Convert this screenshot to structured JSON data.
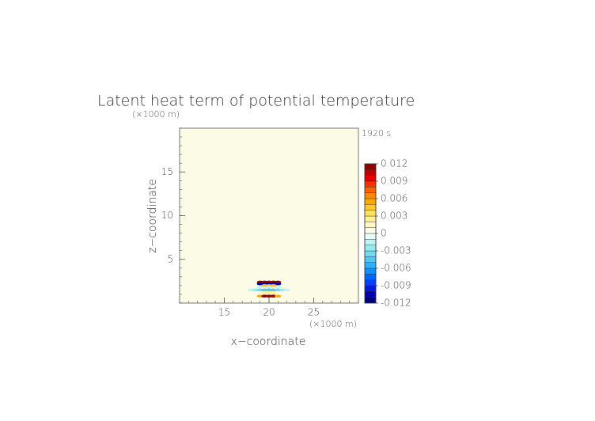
{
  "chart_data": {
    "type": "heatmap",
    "title": "Latent heat term of potential temperature",
    "time_label": "1920 s",
    "x_label": "x−coordinate",
    "y_label": "z−coordinate",
    "x_unit": "(×1000 m)",
    "y_unit": "(×1000 m)",
    "xlim": [
      10,
      30
    ],
    "ylim": [
      0,
      20
    ],
    "xticks": [
      15,
      20,
      25
    ],
    "yticks": [
      5,
      10,
      15
    ],
    "colorbar": {
      "lim": [
        -0.012,
        0.012
      ],
      "ticks": [
        0.012,
        0.009,
        0.006,
        0.003,
        0,
        -0.003,
        -0.006,
        -0.009,
        -0.012
      ],
      "colors": [
        "#00007a",
        "#0000b0",
        "#0018e0",
        "#0040ff",
        "#0068ff",
        "#1090ff",
        "#30b0ff",
        "#50c8f0",
        "#70dcf0",
        "#98eaf0",
        "#c0f4f4",
        "#e8fcfc",
        "#fcfce6",
        "#fff8c0",
        "#fff090",
        "#ffe060",
        "#ffc830",
        "#ffa800",
        "#ff8800",
        "#ff6000",
        "#ff3000",
        "#e80000",
        "#c00000",
        "#900000"
      ]
    },
    "cells": [
      {
        "x": 19,
        "y": 2.4,
        "value": 0.011
      },
      {
        "x": 19.5,
        "y": 2.4,
        "value": 0.011
      },
      {
        "x": 20,
        "y": 2.4,
        "value": 0.011
      },
      {
        "x": 20.5,
        "y": 2.4,
        "value": 0.011
      },
      {
        "x": 21,
        "y": 2.4,
        "value": 0.011
      },
      {
        "x": 19,
        "y": 2.2,
        "value": -0.011
      },
      {
        "x": 19.5,
        "y": 2.2,
        "value": -0.011
      },
      {
        "x": 20,
        "y": 2.2,
        "value": -0.011
      },
      {
        "x": 20.5,
        "y": 2.2,
        "value": -0.011
      },
      {
        "x": 21,
        "y": 2.2,
        "value": -0.011
      },
      {
        "x": 19.5,
        "y": 2.0,
        "value": 0.004
      },
      {
        "x": 20,
        "y": 2.0,
        "value": 0.004
      },
      {
        "x": 20.5,
        "y": 2.0,
        "value": 0.004
      },
      {
        "x": 19,
        "y": 1.8,
        "value": -0.002
      },
      {
        "x": 20,
        "y": 1.8,
        "value": -0.002
      },
      {
        "x": 21,
        "y": 1.8,
        "value": -0.002
      },
      {
        "x": 18,
        "y": 1.5,
        "value": -0.002
      },
      {
        "x": 18.5,
        "y": 1.5,
        "value": -0.003
      },
      {
        "x": 19,
        "y": 1.5,
        "value": -0.004
      },
      {
        "x": 19.5,
        "y": 1.5,
        "value": -0.005
      },
      {
        "x": 20,
        "y": 1.5,
        "value": -0.005
      },
      {
        "x": 20.5,
        "y": 1.5,
        "value": -0.005
      },
      {
        "x": 21,
        "y": 1.5,
        "value": -0.004
      },
      {
        "x": 21.5,
        "y": 1.5,
        "value": -0.003
      },
      {
        "x": 22,
        "y": 1.5,
        "value": -0.002
      },
      {
        "x": 19.5,
        "y": 1.2,
        "value": 0.002
      },
      {
        "x": 20,
        "y": 1.2,
        "value": 0.002
      },
      {
        "x": 20.5,
        "y": 1.2,
        "value": 0.002
      },
      {
        "x": 19,
        "y": 0.8,
        "value": 0.005
      },
      {
        "x": 19.5,
        "y": 0.8,
        "value": 0.012
      },
      {
        "x": 20,
        "y": 0.8,
        "value": 0.012
      },
      {
        "x": 20.5,
        "y": 0.8,
        "value": 0.012
      },
      {
        "x": 21,
        "y": 0.8,
        "value": 0.005
      }
    ]
  }
}
